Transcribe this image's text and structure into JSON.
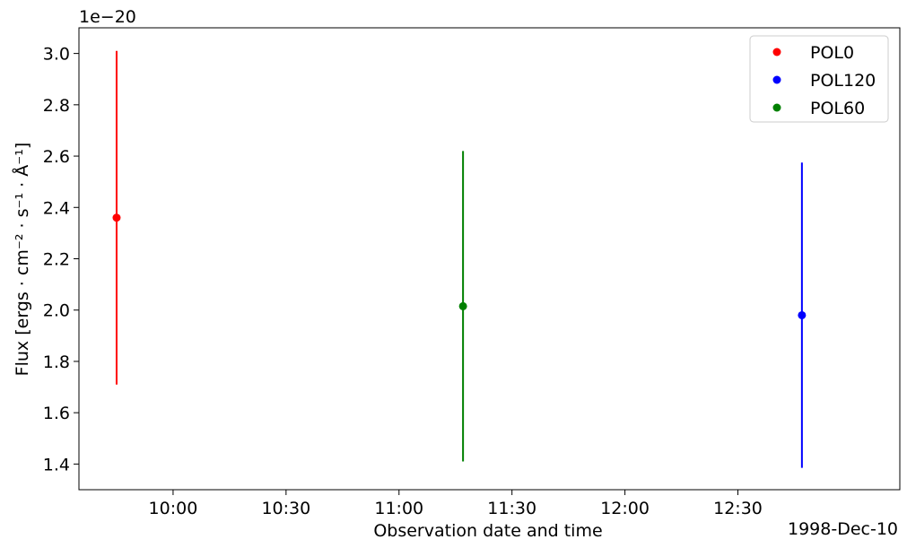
{
  "chart_data": {
    "type": "scatter",
    "title": "",
    "xlabel": "Observation date and time",
    "ylabel": "Flux [ergs · cm⁻² · s⁻¹ · Å⁻¹]",
    "y_offset_label": "1e−20",
    "x_offset_label": "1998-Dec-10",
    "xlim": [
      "09:35",
      "13:13"
    ],
    "ylim": [
      1.3,
      3.1
    ],
    "x_ticks": [
      "10:00",
      "10:30",
      "11:00",
      "11:30",
      "12:00",
      "12:30"
    ],
    "y_ticks": [
      "1.4",
      "1.6",
      "1.8",
      "2.0",
      "2.2",
      "2.4",
      "2.6",
      "2.8",
      "3.0"
    ],
    "grid": false,
    "legend_position": "upper-right",
    "series": [
      {
        "name": "POL0",
        "color": "#ff0000",
        "points": [
          {
            "x": "09:45",
            "y": 2.36,
            "y_err": 0.65
          }
        ]
      },
      {
        "name": "POL120",
        "color": "#0000ff",
        "points": [
          {
            "x": "12:47",
            "y": 1.98,
            "y_err": 0.595
          }
        ]
      },
      {
        "name": "POL60",
        "color": "#008000",
        "points": [
          {
            "x": "11:17",
            "y": 2.015,
            "y_err": 0.605
          }
        ]
      }
    ]
  }
}
